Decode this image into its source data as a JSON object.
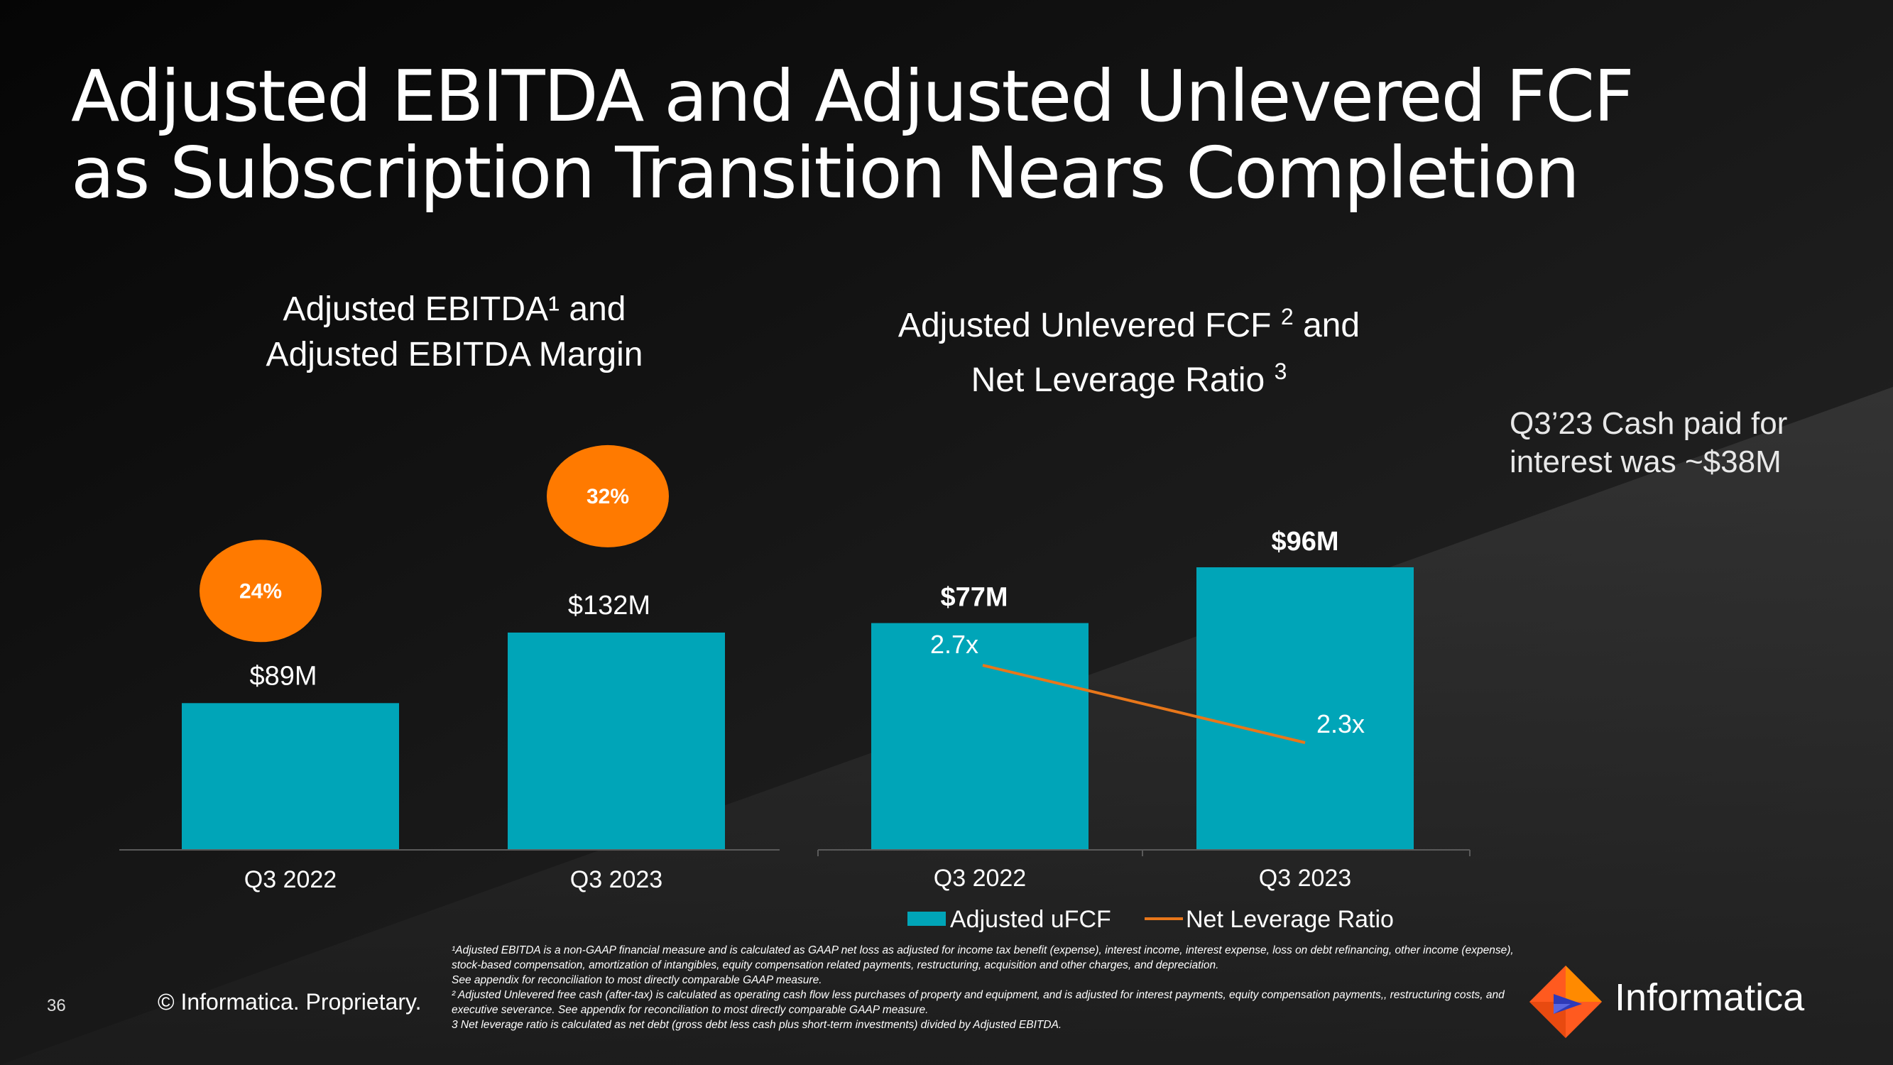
{
  "slide": {
    "title": "Adjusted EBITDA and Adjusted Unlevered FCF as Subscription Transition Nears Completion",
    "side_note": "Q3’23 Cash paid for interest was ~$38M",
    "page_number": "36",
    "copyright": "© Informatica. Proprietary.",
    "brand_name": "Informatica",
    "colors": {
      "bar": "#00A5B8",
      "margin_bubble": "#FF7A00",
      "line": "#E8771A",
      "background": "#0E0E0E"
    }
  },
  "ebitda_title": {
    "line1": "Adjusted EBITDA¹ and",
    "line2": "Adjusted EBITDA Margin"
  },
  "ufcf_title": {
    "line1": "Adjusted Unlevered FCF",
    "sup1": "2",
    "line1b": "and",
    "line2": "Net Leverage Ratio",
    "sup2": "3"
  },
  "chart_data": [
    {
      "type": "bar",
      "title": "Adjusted EBITDA¹ and Adjusted EBITDA Margin",
      "categories": [
        "Q3 2022",
        "Q3 2023"
      ],
      "series": [
        {
          "name": "",
          "values": [
            89,
            132
          ],
          "labels": [
            "$89M",
            "$132M"
          ]
        }
      ],
      "margins": {
        "values": [
          24,
          32
        ],
        "labels": [
          "24%",
          "32%"
        ]
      },
      "ylim": [
        0,
        180
      ],
      "grid": false
    },
    {
      "type": "bar",
      "title": "Adjusted Unlevered FCF 2 and Net Leverage Ratio 3",
      "categories": [
        "Q3 2022",
        "Q3 2023"
      ],
      "series": [
        {
          "name": "Adjusted uFCF",
          "type": "bar",
          "values": [
            77,
            96
          ],
          "labels": [
            "$77M",
            "$96M"
          ]
        },
        {
          "name": "Net Leverage Ratio",
          "type": "line",
          "values": [
            2.7,
            2.3
          ],
          "labels": [
            "2.7x",
            "2.3x"
          ]
        }
      ],
      "ylim": [
        0,
        125
      ],
      "legend": "bottom",
      "grid": false
    }
  ],
  "footnotes": {
    "f1": "¹Adjusted EBITDA is a non-GAAP financial measure and is calculated as GAAP net loss as adjusted for income tax benefit (expense), interest income, interest expense, loss on debt refinancing, other income (expense), stock-based compensation, amortization of intangibles, equity compensation related payments, restructuring, acquisition and other charges, and depreciation.",
    "f1b": "See appendix for reconciliation to most directly comparable GAAP measure.",
    "f2": "² Adjusted Unlevered free cash (after-tax) is calculated as operating cash flow less purchases of property and equipment, and is adjusted for interest payments, equity compensation payments,, restructuring costs, and executive severance. See appendix for reconciliation to most directly comparable GAAP measure.",
    "f3": "3 Net leverage ratio is calculated as net debt (gross debt less cash plus short-term investments) divided by Adjusted EBITDA."
  }
}
